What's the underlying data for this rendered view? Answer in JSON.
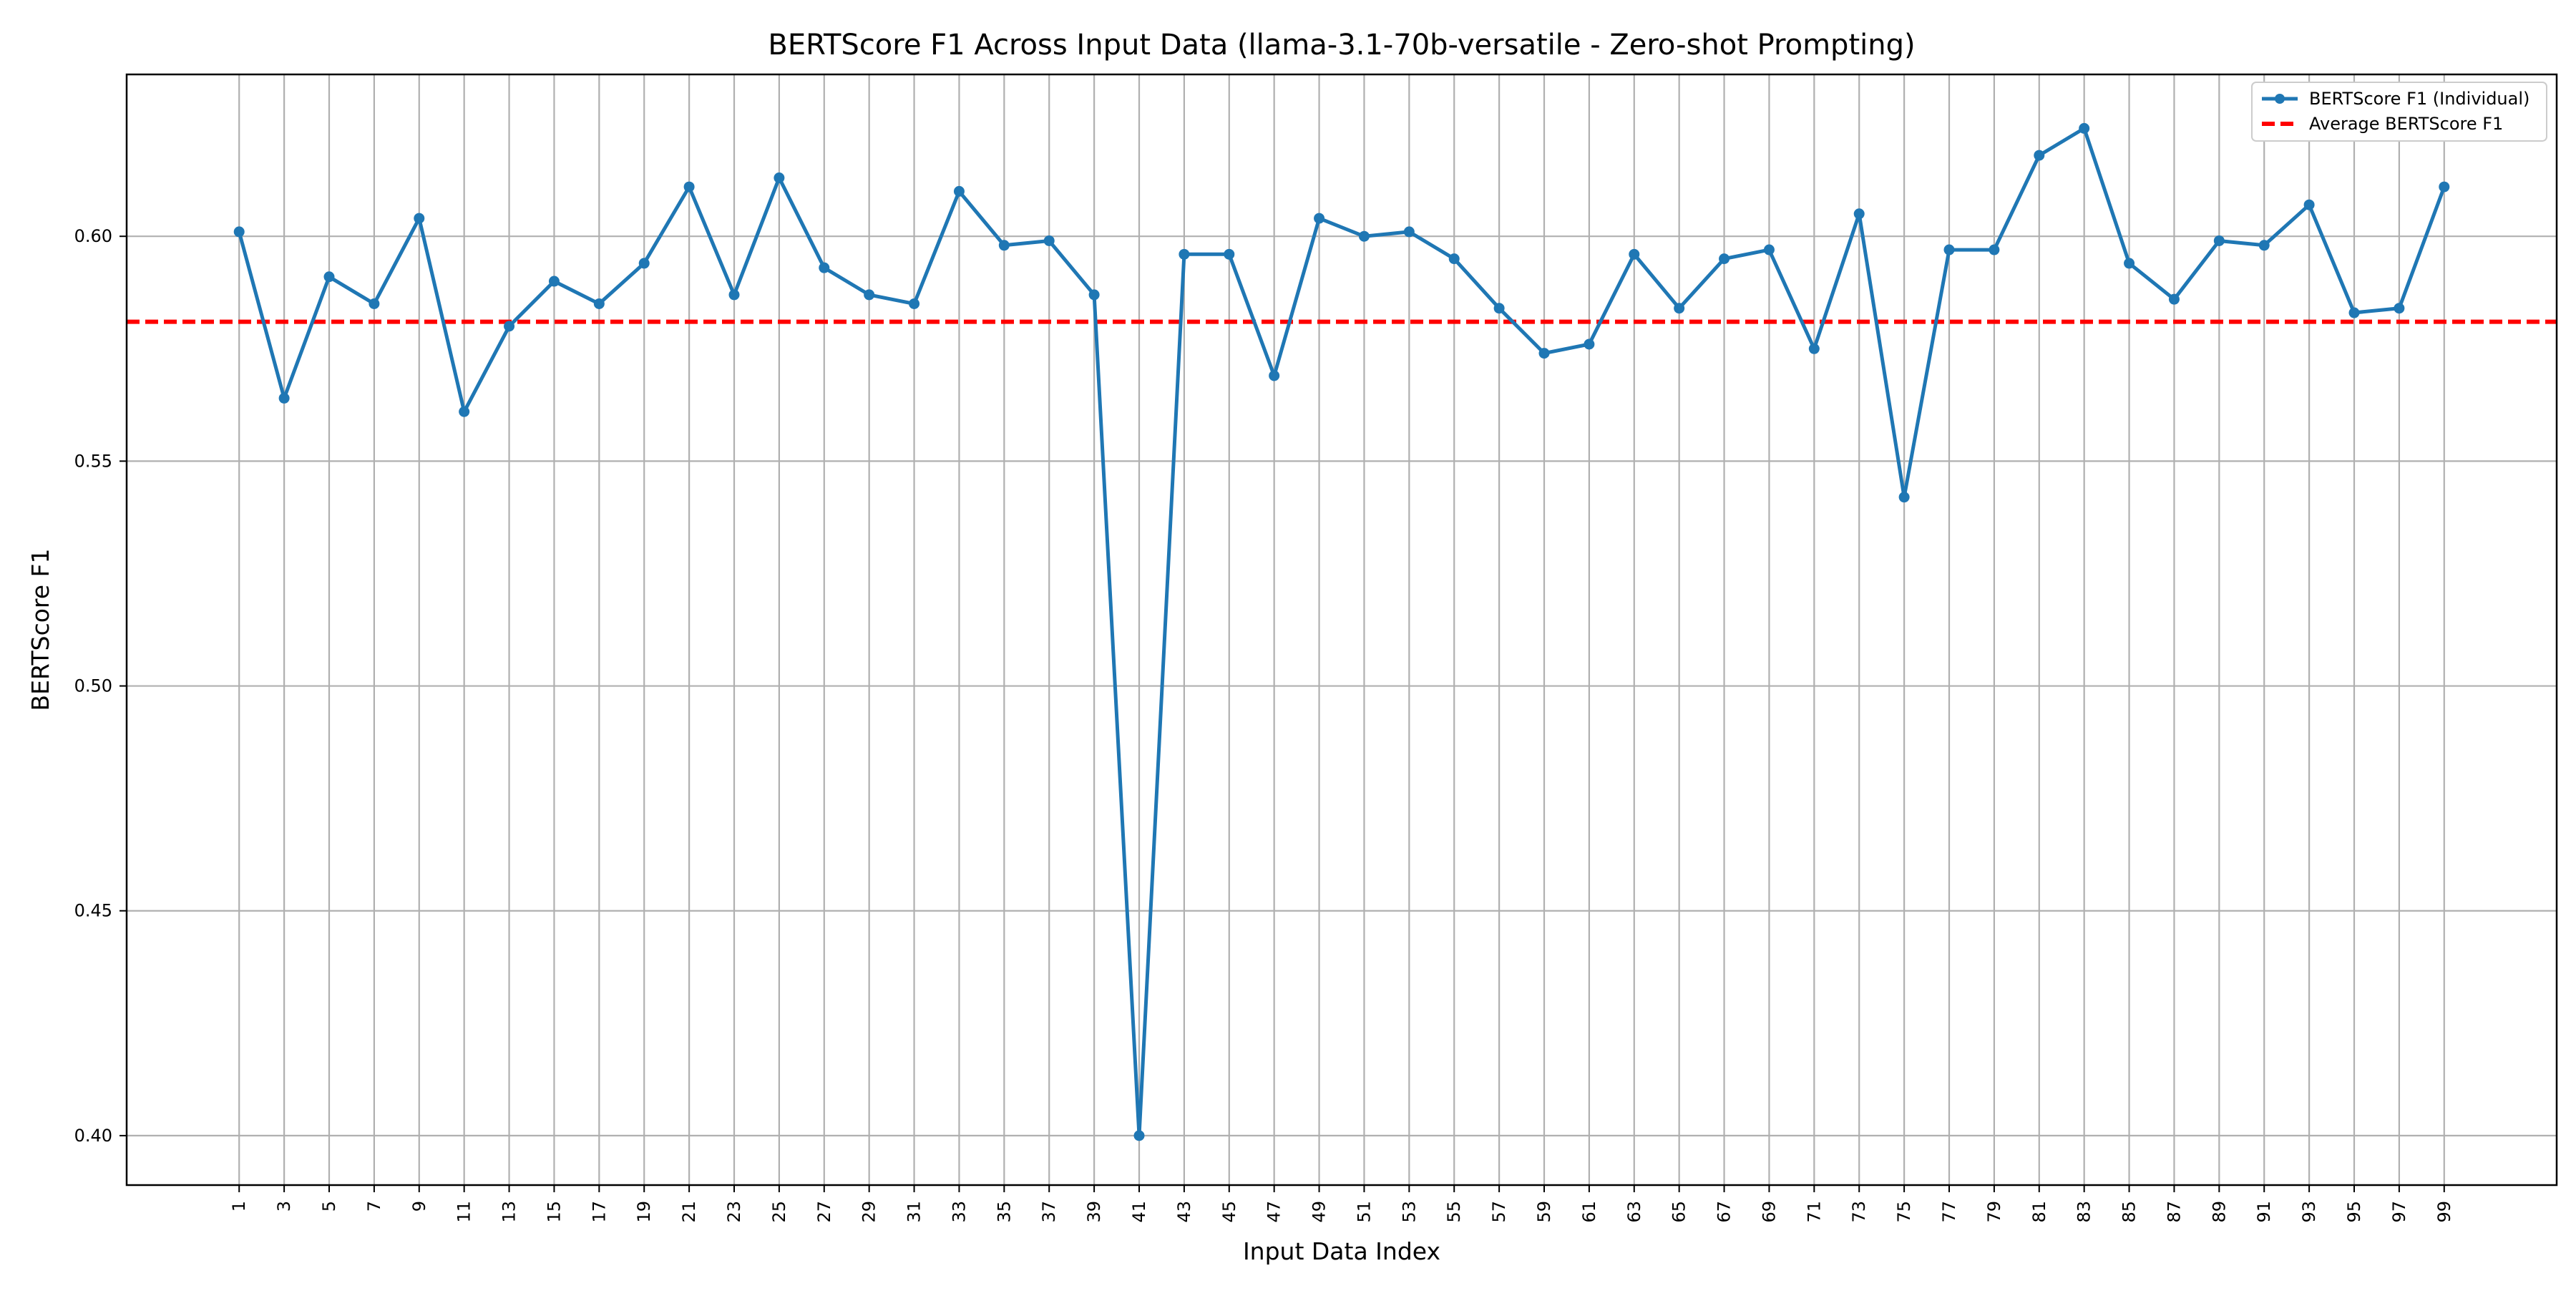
{
  "chart_data": {
    "type": "line",
    "title": "BERTScore F1 Across Input Data (llama-3.1-70b-versatile - Zero-shot Prompting)",
    "xlabel": "Input Data Index",
    "ylabel": "BERTScore F1",
    "x": [
      1,
      3,
      5,
      7,
      9,
      11,
      13,
      15,
      17,
      19,
      21,
      23,
      25,
      27,
      29,
      31,
      33,
      35,
      37,
      39,
      41,
      43,
      45,
      47,
      49,
      51,
      53,
      55,
      57,
      59,
      61,
      63,
      65,
      67,
      69,
      71,
      73,
      75,
      77,
      79,
      81,
      83,
      85,
      87,
      89,
      91,
      93,
      95,
      97,
      99
    ],
    "xticks": [
      "1",
      "3",
      "5",
      "7",
      "9",
      "11",
      "13",
      "15",
      "17",
      "19",
      "21",
      "23",
      "25",
      "27",
      "29",
      "31",
      "33",
      "35",
      "37",
      "39",
      "41",
      "43",
      "45",
      "47",
      "49",
      "51",
      "53",
      "55",
      "57",
      "59",
      "61",
      "63",
      "65",
      "67",
      "69",
      "71",
      "73",
      "75",
      "77",
      "79",
      "81",
      "83",
      "85",
      "87",
      "89",
      "91",
      "93",
      "95",
      "97",
      "99"
    ],
    "yticks": [
      "0.40",
      "0.45",
      "0.50",
      "0.55",
      "0.60"
    ],
    "ytick_values": [
      0.4,
      0.45,
      0.5,
      0.55,
      0.6
    ],
    "xlim": [
      -4,
      104
    ],
    "ylim": [
      0.389,
      0.636
    ],
    "grid": true,
    "legend_position": "top-right",
    "series": [
      {
        "name": "BERTScore F1 (Individual)",
        "color": "#1f77b4",
        "style": "solid-with-markers",
        "values": [
          0.601,
          0.564,
          0.591,
          0.585,
          0.604,
          0.561,
          0.58,
          0.59,
          0.585,
          0.594,
          0.611,
          0.587,
          0.613,
          0.593,
          0.587,
          0.585,
          0.61,
          0.598,
          0.599,
          0.587,
          0.4,
          0.596,
          0.596,
          0.569,
          0.604,
          0.6,
          0.601,
          0.595,
          0.584,
          0.574,
          0.576,
          0.596,
          0.584,
          0.595,
          0.597,
          0.575,
          0.605,
          0.542,
          0.597,
          0.597,
          0.618,
          0.624,
          0.594,
          0.586,
          0.599,
          0.598,
          0.607,
          0.583,
          0.584,
          0.611
        ]
      },
      {
        "name": "Average BERTScore F1",
        "color": "#ff0000",
        "style": "dashed",
        "value": 0.581
      }
    ]
  }
}
